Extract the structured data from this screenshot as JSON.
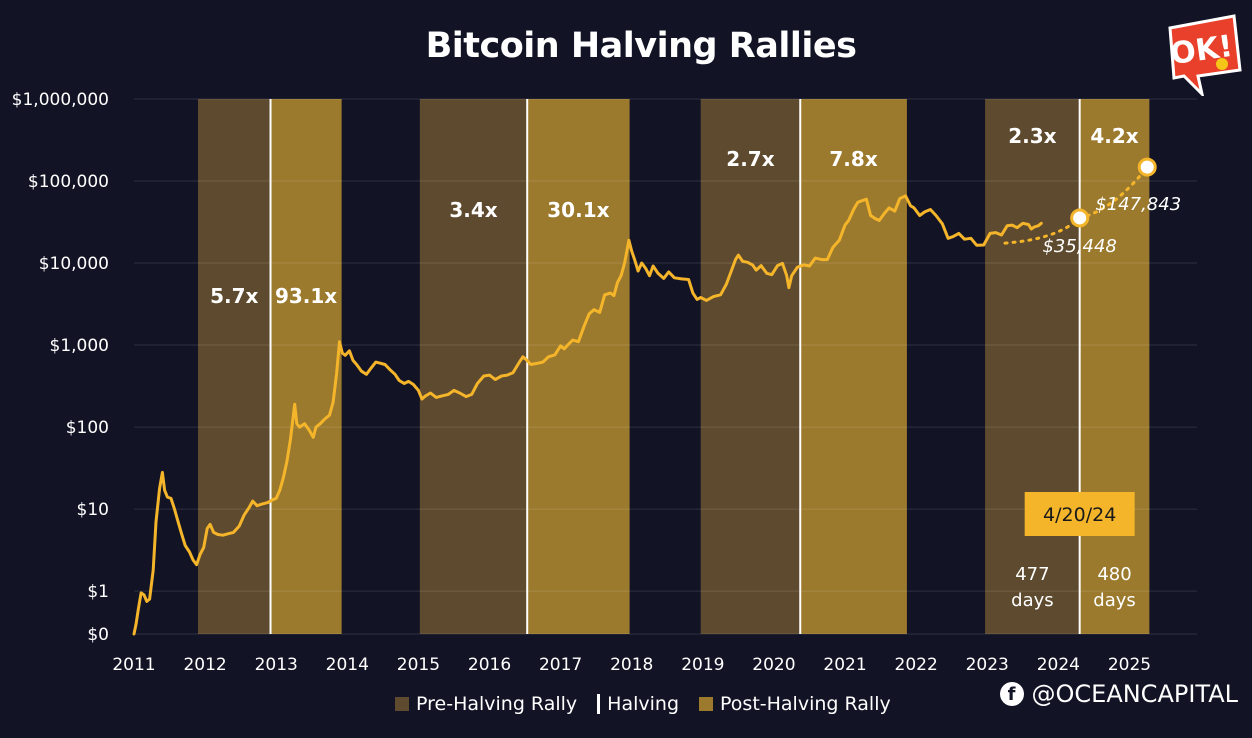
{
  "chart_data": {
    "type": "line",
    "title": "Bitcoin Halving Rallies",
    "yscale": "log",
    "ylim": [
      0.3,
      1000000
    ],
    "xlim": [
      2011.0,
      2025.95
    ],
    "y_ticks": [
      {
        "value": 0.3,
        "label": "$0"
      },
      {
        "value": 1,
        "label": "$1"
      },
      {
        "value": 10,
        "label": "$10"
      },
      {
        "value": 100,
        "label": "$100"
      },
      {
        "value": 1000,
        "label": "$1,000"
      },
      {
        "value": 10000,
        "label": "$10,000"
      },
      {
        "value": 100000,
        "label": "$100,000"
      },
      {
        "value": 1000000,
        "label": "$1,000,000"
      }
    ],
    "x_ticks": [
      "2011",
      "2012",
      "2013",
      "2014",
      "2015",
      "2016",
      "2017",
      "2018",
      "2019",
      "2020",
      "2021",
      "2022",
      "2023",
      "2024",
      "2025"
    ],
    "x_tick_values": [
      2011,
      2012,
      2013,
      2014,
      2015,
      2016,
      2017,
      2018,
      2019,
      2020,
      2021,
      2022,
      2023,
      2024,
      2025
    ],
    "series": [
      {
        "name": "Bitcoin price",
        "color": "#f5b52a",
        "points": [
          [
            2011.0,
            0.3
          ],
          [
            2011.03,
            0.4
          ],
          [
            2011.06,
            0.6
          ],
          [
            2011.1,
            0.95
          ],
          [
            2011.14,
            0.9
          ],
          [
            2011.18,
            0.75
          ],
          [
            2011.22,
            0.8
          ],
          [
            2011.27,
            1.8
          ],
          [
            2011.31,
            7.0
          ],
          [
            2011.36,
            18.0
          ],
          [
            2011.4,
            28.0
          ],
          [
            2011.43,
            17.0
          ],
          [
            2011.47,
            14.0
          ],
          [
            2011.52,
            13.5
          ],
          [
            2011.57,
            10.0
          ],
          [
            2011.62,
            7.0
          ],
          [
            2011.67,
            5.0
          ],
          [
            2011.72,
            3.6
          ],
          [
            2011.78,
            3.0
          ],
          [
            2011.83,
            2.4
          ],
          [
            2011.88,
            2.1
          ],
          [
            2011.93,
            2.8
          ],
          [
            2011.98,
            3.4
          ],
          [
            2012.03,
            5.8
          ],
          [
            2012.07,
            6.5
          ],
          [
            2012.12,
            5.2
          ],
          [
            2012.18,
            4.9
          ],
          [
            2012.25,
            4.8
          ],
          [
            2012.32,
            5.0
          ],
          [
            2012.4,
            5.2
          ],
          [
            2012.48,
            6.2
          ],
          [
            2012.55,
            8.5
          ],
          [
            2012.62,
            10.5
          ],
          [
            2012.67,
            12.5
          ],
          [
            2012.73,
            11.0
          ],
          [
            2012.8,
            11.5
          ],
          [
            2012.88,
            12.0
          ],
          [
            2012.95,
            13.0
          ],
          [
            2013.0,
            13.5
          ],
          [
            2013.05,
            17.0
          ],
          [
            2013.1,
            24.0
          ],
          [
            2013.15,
            38.0
          ],
          [
            2013.2,
            70.0
          ],
          [
            2013.26,
            190.0
          ],
          [
            2013.29,
            110.0
          ],
          [
            2013.33,
            100.0
          ],
          [
            2013.4,
            110.0
          ],
          [
            2013.47,
            90.0
          ],
          [
            2013.52,
            75.0
          ],
          [
            2013.56,
            100.0
          ],
          [
            2013.62,
            110.0
          ],
          [
            2013.68,
            125.0
          ],
          [
            2013.75,
            140.0
          ],
          [
            2013.8,
            200.0
          ],
          [
            2013.85,
            450.0
          ],
          [
            2013.89,
            1100.0
          ],
          [
            2013.93,
            800.0
          ],
          [
            2013.97,
            750.0
          ],
          [
            2014.03,
            850.0
          ],
          [
            2014.08,
            650.0
          ],
          [
            2014.13,
            580.0
          ],
          [
            2014.2,
            480.0
          ],
          [
            2014.27,
            440.0
          ],
          [
            2014.33,
            520.0
          ],
          [
            2014.4,
            620.0
          ],
          [
            2014.47,
            600.0
          ],
          [
            2014.53,
            580.0
          ],
          [
            2014.6,
            500.0
          ],
          [
            2014.67,
            440.0
          ],
          [
            2014.73,
            370.0
          ],
          [
            2014.8,
            340.0
          ],
          [
            2014.86,
            360.0
          ],
          [
            2014.93,
            330.0
          ],
          [
            2015.0,
            280.0
          ],
          [
            2015.05,
            220.0
          ],
          [
            2015.1,
            240.0
          ],
          [
            2015.17,
            260.0
          ],
          [
            2015.25,
            230.0
          ],
          [
            2015.33,
            240.0
          ],
          [
            2015.42,
            250.0
          ],
          [
            2015.5,
            280.0
          ],
          [
            2015.58,
            260.0
          ],
          [
            2015.67,
            235.0
          ],
          [
            2015.75,
            250.0
          ],
          [
            2015.83,
            340.0
          ],
          [
            2015.92,
            420.0
          ],
          [
            2016.0,
            430.0
          ],
          [
            2016.08,
            380.0
          ],
          [
            2016.17,
            420.0
          ],
          [
            2016.25,
            430.0
          ],
          [
            2016.33,
            460.0
          ],
          [
            2016.42,
            620.0
          ],
          [
            2016.47,
            720.0
          ],
          [
            2016.52,
            660.0
          ],
          [
            2016.58,
            580.0
          ],
          [
            2016.67,
            600.0
          ],
          [
            2016.75,
            620.0
          ],
          [
            2016.83,
            720.0
          ],
          [
            2016.92,
            760.0
          ],
          [
            2017.0,
            980.0
          ],
          [
            2017.05,
            900.0
          ],
          [
            2017.1,
            1000.0
          ],
          [
            2017.17,
            1150.0
          ],
          [
            2017.25,
            1100.0
          ],
          [
            2017.33,
            1700.0
          ],
          [
            2017.4,
            2400.0
          ],
          [
            2017.47,
            2700.0
          ],
          [
            2017.55,
            2500.0
          ],
          [
            2017.62,
            4100.0
          ],
          [
            2017.7,
            4300.0
          ],
          [
            2017.75,
            4000.0
          ],
          [
            2017.8,
            5800.0
          ],
          [
            2017.85,
            7000.0
          ],
          [
            2017.9,
            10000.0
          ],
          [
            2017.96,
            19000.0
          ],
          [
            2018.0,
            14000.0
          ],
          [
            2018.04,
            11000.0
          ],
          [
            2018.09,
            8000.0
          ],
          [
            2018.14,
            10000.0
          ],
          [
            2018.2,
            8500.0
          ],
          [
            2018.25,
            7000.0
          ],
          [
            2018.3,
            9200.0
          ],
          [
            2018.37,
            7500.0
          ],
          [
            2018.45,
            6500.0
          ],
          [
            2018.52,
            7800.0
          ],
          [
            2018.6,
            6600.0
          ],
          [
            2018.7,
            6400.0
          ],
          [
            2018.8,
            6300.0
          ],
          [
            2018.86,
            4300.0
          ],
          [
            2018.92,
            3600.0
          ],
          [
            2018.97,
            3800.0
          ],
          [
            2019.05,
            3500.0
          ],
          [
            2019.15,
            3900.0
          ],
          [
            2019.25,
            4100.0
          ],
          [
            2019.33,
            5500.0
          ],
          [
            2019.4,
            8000.0
          ],
          [
            2019.46,
            11000.0
          ],
          [
            2019.5,
            12500.0
          ],
          [
            2019.56,
            10500.0
          ],
          [
            2019.63,
            10200.0
          ],
          [
            2019.7,
            9500.0
          ],
          [
            2019.75,
            8200.0
          ],
          [
            2019.82,
            9300.0
          ],
          [
            2019.9,
            7500.0
          ],
          [
            2019.97,
            7200.0
          ],
          [
            2020.05,
            9300.0
          ],
          [
            2020.12,
            9900.0
          ],
          [
            2020.18,
            7000.0
          ],
          [
            2020.21,
            5000.0
          ],
          [
            2020.25,
            7000.0
          ],
          [
            2020.33,
            8900.0
          ],
          [
            2020.42,
            9500.0
          ],
          [
            2020.5,
            9200.0
          ],
          [
            2020.58,
            11500.0
          ],
          [
            2020.67,
            11000.0
          ],
          [
            2020.75,
            11000.0
          ],
          [
            2020.83,
            15500.0
          ],
          [
            2020.92,
            19000.0
          ],
          [
            2021.0,
            29000.0
          ],
          [
            2021.05,
            33000.0
          ],
          [
            2021.12,
            45000.0
          ],
          [
            2021.18,
            55000.0
          ],
          [
            2021.25,
            58000.0
          ],
          [
            2021.3,
            60000.0
          ],
          [
            2021.36,
            38000.0
          ],
          [
            2021.42,
            35000.0
          ],
          [
            2021.48,
            33000.0
          ],
          [
            2021.55,
            40000.0
          ],
          [
            2021.62,
            47000.0
          ],
          [
            2021.7,
            43000.0
          ],
          [
            2021.77,
            61000.0
          ],
          [
            2021.85,
            66000.0
          ],
          [
            2021.92,
            50000.0
          ],
          [
            2021.97,
            47000.0
          ],
          [
            2022.05,
            38000.0
          ],
          [
            2022.12,
            42000.0
          ],
          [
            2022.2,
            45000.0
          ],
          [
            2022.28,
            38000.0
          ],
          [
            2022.37,
            30000.0
          ],
          [
            2022.45,
            20000.0
          ],
          [
            2022.52,
            21000.0
          ],
          [
            2022.6,
            23000.0
          ],
          [
            2022.68,
            19500.0
          ],
          [
            2022.77,
            20000.0
          ],
          [
            2022.85,
            16500.0
          ],
          [
            2022.95,
            16600.0
          ],
          [
            2023.04,
            23000.0
          ],
          [
            2023.12,
            23500.0
          ],
          [
            2023.2,
            22000.0
          ],
          [
            2023.28,
            28500.0
          ],
          [
            2023.35,
            29000.0
          ],
          [
            2023.42,
            27000.0
          ],
          [
            2023.5,
            30500.0
          ],
          [
            2023.58,
            29500.0
          ],
          [
            2023.62,
            26000.0
          ],
          [
            2023.66,
            27500.0
          ],
          [
            2023.72,
            28500.0
          ],
          [
            2023.76,
            30500.0
          ]
        ]
      },
      {
        "name": "Projection",
        "style": "dotted",
        "color": "#f5b52a",
        "points": [
          [
            2023.25,
            17500.0
          ],
          [
            2023.7,
            23000.0
          ],
          [
            2024.3,
            35448.0
          ],
          [
            2025.25,
            147843.0
          ]
        ]
      }
    ],
    "shaded_regions": [
      {
        "start": 2011.9,
        "end": 2012.92,
        "type": "pre-halving",
        "multiplier": "5.7x"
      },
      {
        "start": 2012.92,
        "end": 2013.92,
        "type": "post-halving",
        "multiplier": "93.1x"
      },
      {
        "start": 2015.02,
        "end": 2016.53,
        "type": "pre-halving",
        "multiplier": "3.4x"
      },
      {
        "start": 2016.53,
        "end": 2017.97,
        "type": "post-halving",
        "multiplier": "30.1x"
      },
      {
        "start": 2018.97,
        "end": 2020.37,
        "type": "pre-halving",
        "multiplier": "2.7x"
      },
      {
        "start": 2020.37,
        "end": 2021.87,
        "type": "post-halving",
        "multiplier": "7.8x"
      },
      {
        "start": 2022.97,
        "end": 2024.3,
        "type": "pre-halving",
        "multiplier": "2.3x"
      },
      {
        "start": 2024.3,
        "end": 2025.28,
        "type": "post-halving",
        "multiplier": "4.2x"
      }
    ],
    "halvings": [
      2012.92,
      2016.53,
      2020.37,
      2024.3
    ],
    "annotations": {
      "current_point": {
        "x": 2024.3,
        "y": 35448,
        "label": "$35,448"
      },
      "target_point": {
        "x": 2025.25,
        "y": 147843,
        "label": "$147,843"
      },
      "next_halving_date": "4/20/24",
      "pre_days_value": "477",
      "pre_days_unit": "days",
      "post_days_value": "480",
      "post_days_unit": "days"
    }
  },
  "colors": {
    "background": "#121426",
    "pre_halving": "#5e4a2e",
    "post_halving": "#9c7a2d",
    "line": "#f5b52a",
    "badge": "#f5b52a"
  },
  "legend": {
    "pre_label": "Pre-Halving Rally",
    "halving_label": "Halving",
    "post_label": "Post-Halving Rally"
  },
  "logo": {
    "text": "OK!",
    "icon": "ok-speech-bubble-icon"
  },
  "handle": {
    "icon": "facebook-icon",
    "glyph": "f",
    "text": "@OCEANCAPITAL"
  }
}
